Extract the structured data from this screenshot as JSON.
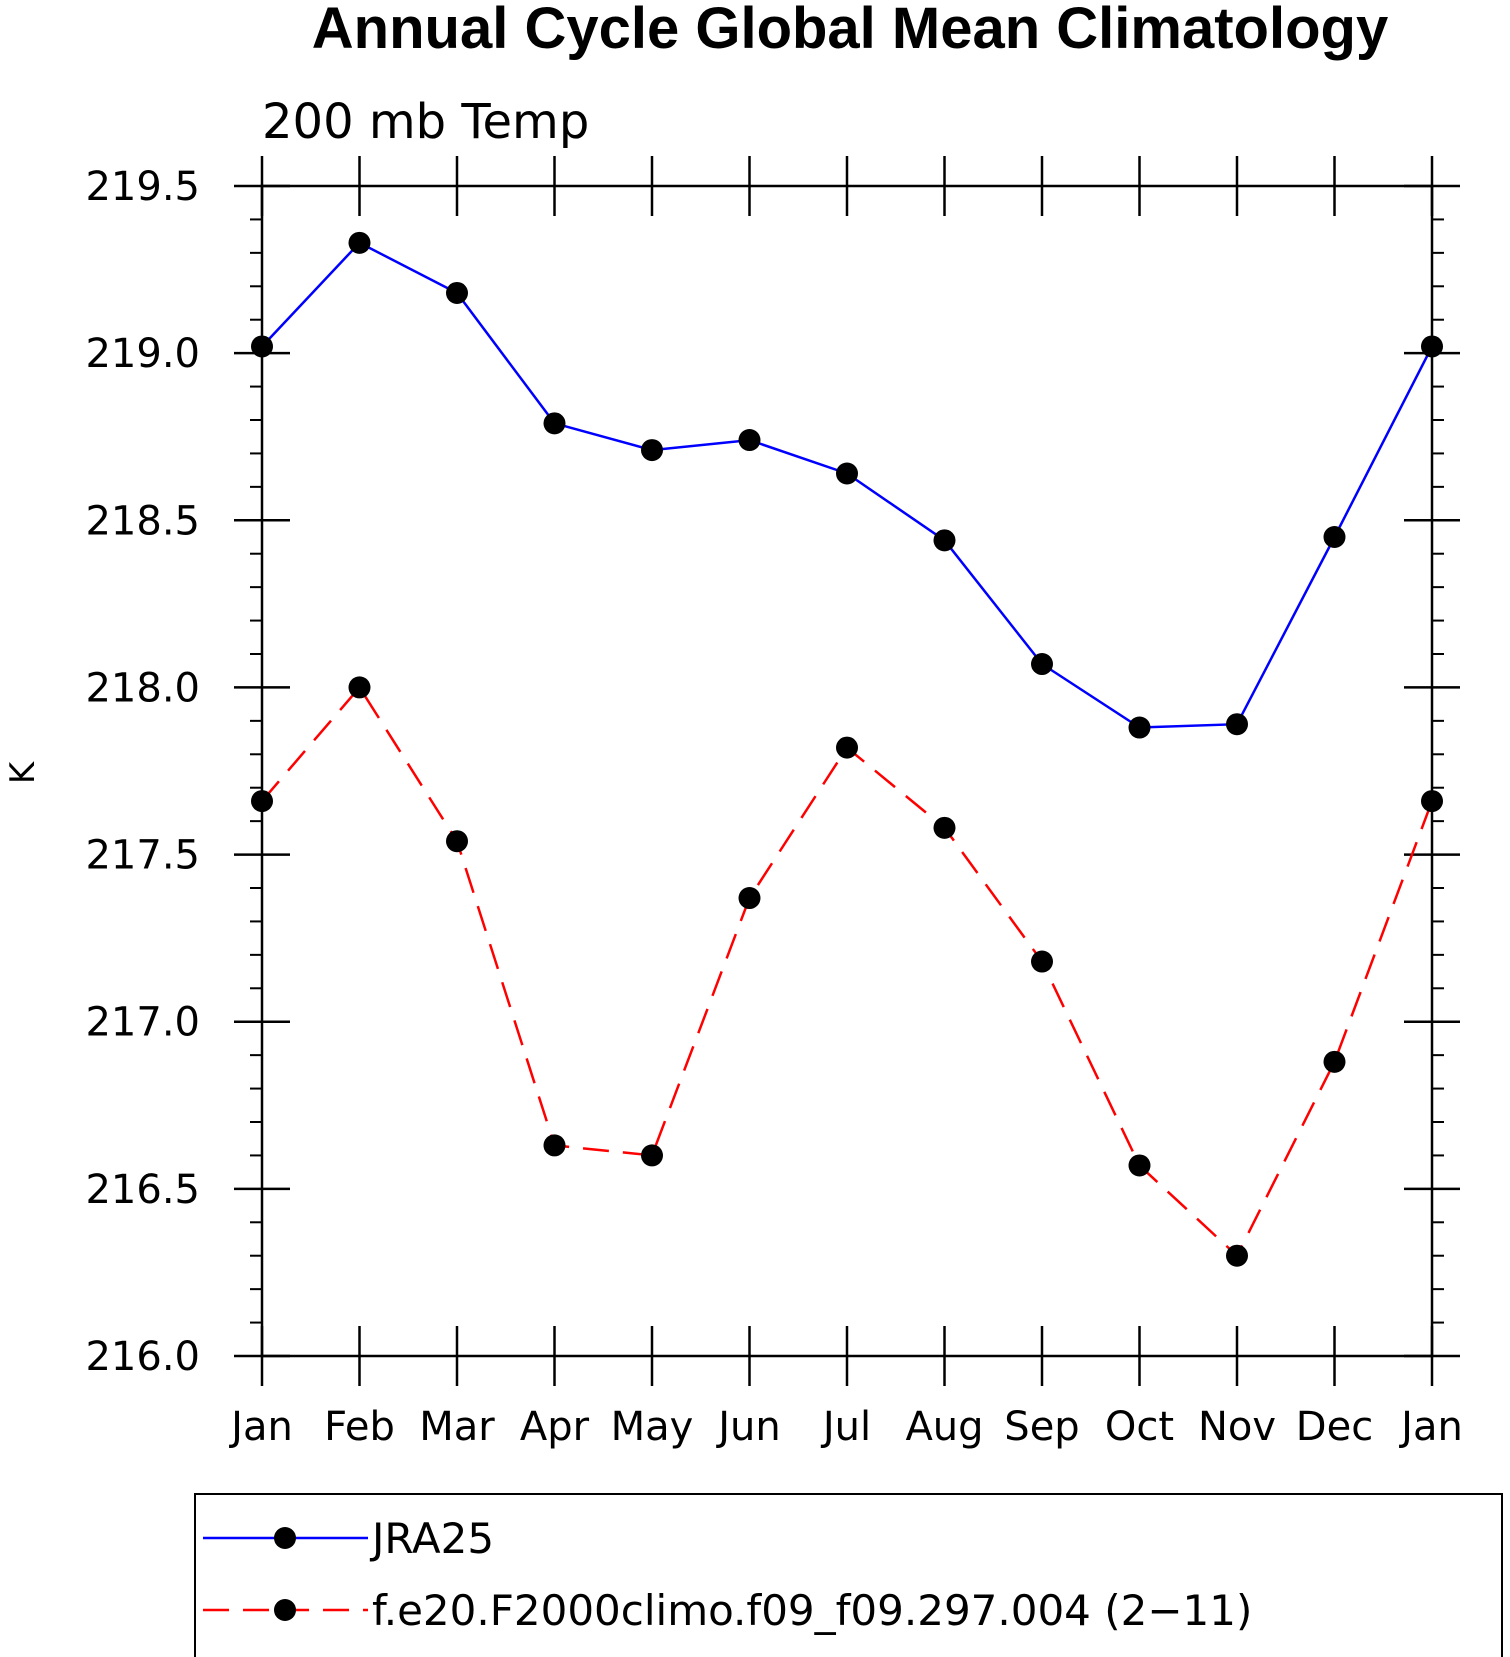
{
  "chart_data": {
    "type": "line",
    "title": "Annual Cycle Global Mean Climatology",
    "subtitle": "200 mb Temp",
    "xlabel": "",
    "ylabel": "K",
    "categories": [
      "Jan",
      "Feb",
      "Mar",
      "Apr",
      "May",
      "Jun",
      "Jul",
      "Aug",
      "Sep",
      "Oct",
      "Nov",
      "Dec",
      "Jan"
    ],
    "ylim": [
      216.0,
      219.5
    ],
    "yticks": [
      "216.0",
      "216.5",
      "217.0",
      "217.5",
      "218.0",
      "218.5",
      "219.0",
      "219.5"
    ],
    "grid": false,
    "legend_position": "bottom",
    "series": [
      {
        "name": "JRA25",
        "color": "#0000ff",
        "line_style": "solid",
        "marker": "filled-circle",
        "values": [
          219.02,
          219.33,
          219.18,
          218.79,
          218.71,
          218.74,
          218.64,
          218.44,
          218.07,
          217.88,
          217.89,
          218.45,
          219.02
        ]
      },
      {
        "name": "f.e20.F2000climo.f09_f09.297.004 (2−11)",
        "color": "#ff0000",
        "line_style": "dashed",
        "marker": "filled-circle",
        "values": [
          217.66,
          218.0,
          217.54,
          216.63,
          216.6,
          217.37,
          217.82,
          217.58,
          217.18,
          216.57,
          216.3,
          216.88,
          217.66
        ]
      }
    ]
  }
}
